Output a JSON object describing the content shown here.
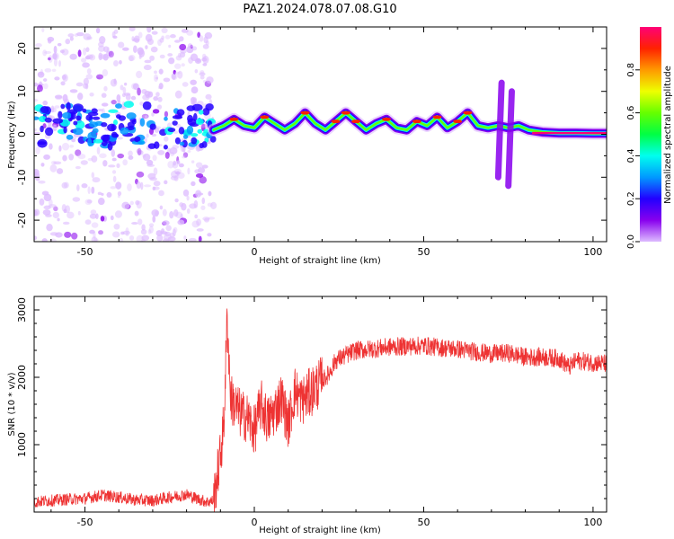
{
  "figure": {
    "title": "PAZ1.2024.078.07.08.G10"
  },
  "chart_data": [
    {
      "type": "heatmap",
      "xlabel": "Height of straight line (km)",
      "ylabel": "Frequency (Hz)",
      "xlim": [
        -65,
        104
      ],
      "ylim": [
        -25,
        25
      ],
      "x_ticks": [
        -50,
        0,
        50,
        100
      ],
      "y_ticks": [
        -20,
        -10,
        0,
        10,
        20
      ],
      "grid": false,
      "colorbar": {
        "label": "Normalized spectral amplitude",
        "range": [
          0,
          1
        ],
        "ticks": [
          0.0,
          0.2,
          0.4,
          0.6,
          0.8
        ],
        "colormap": [
          "#ddbbff",
          "#8800ee",
          "#2200ff",
          "#0099ff",
          "#00ffee",
          "#00ff44",
          "#66ff00",
          "#eeff00",
          "#ff9900",
          "#ff2200",
          "#ff0077"
        ]
      },
      "ridge": {
        "x": [
          -12,
          -9,
          -6,
          -3,
          0,
          3,
          6,
          9,
          12,
          15,
          18,
          21,
          24,
          27,
          30,
          33,
          36,
          39,
          42,
          45,
          48,
          51,
          54,
          57,
          60,
          63,
          66,
          69,
          72,
          75,
          78,
          81,
          85,
          90,
          95,
          100,
          104
        ],
        "y": [
          1,
          2,
          3.5,
          2,
          1.5,
          4,
          2.5,
          1,
          2.5,
          5,
          2.5,
          1,
          3,
          5,
          3,
          1,
          2.5,
          3.5,
          1.5,
          1,
          3,
          2,
          4,
          1.5,
          3,
          5,
          2,
          1.5,
          2,
          1.5,
          2,
          1,
          0.5,
          0.3,
          0.3,
          0.2,
          0.2
        ]
      },
      "noisy_region": {
        "x_range": [
          -65,
          -12
        ],
        "frequency_spread": [
          -25,
          25
        ]
      },
      "vertical_streaks": [
        {
          "x": 72,
          "y_range": [
            -10,
            12
          ]
        },
        {
          "x": 75,
          "y_range": [
            -12,
            10
          ]
        }
      ]
    },
    {
      "type": "line",
      "xlabel": "Height of straight line (km)",
      "ylabel": "SNR (10 * v/v)",
      "xlim": [
        -65,
        104
      ],
      "ylim": [
        0,
        3200
      ],
      "x_ticks": [
        -50,
        0,
        50,
        100
      ],
      "y_ticks": [
        1000,
        2000,
        3000
      ],
      "grid": false,
      "series": [
        {
          "color": "#ee3333",
          "x": [
            -65,
            -60,
            -55,
            -50,
            -45,
            -40,
            -35,
            -30,
            -25,
            -20,
            -17,
            -14,
            -12,
            -10,
            -9,
            -8,
            -7,
            -6,
            -4,
            -2,
            0,
            2,
            4,
            6,
            8,
            10,
            12,
            14,
            16,
            18,
            20,
            22,
            24,
            26,
            28,
            30,
            35,
            40,
            45,
            50,
            55,
            60,
            65,
            70,
            75,
            80,
            85,
            90,
            93,
            95,
            100,
            104
          ],
          "y": [
            150,
            170,
            190,
            200,
            250,
            220,
            180,
            170,
            220,
            260,
            200,
            150,
            170,
            850,
            1300,
            2900,
            1700,
            1600,
            1450,
            1400,
            1200,
            1600,
            1350,
            1500,
            1700,
            1300,
            1800,
            1650,
            1750,
            1850,
            1950,
            2050,
            2250,
            2300,
            2350,
            2400,
            2420,
            2450,
            2460,
            2470,
            2440,
            2420,
            2380,
            2350,
            2360,
            2300,
            2300,
            2280,
            2150,
            2250,
            2220,
            2200
          ]
        }
      ]
    }
  ]
}
